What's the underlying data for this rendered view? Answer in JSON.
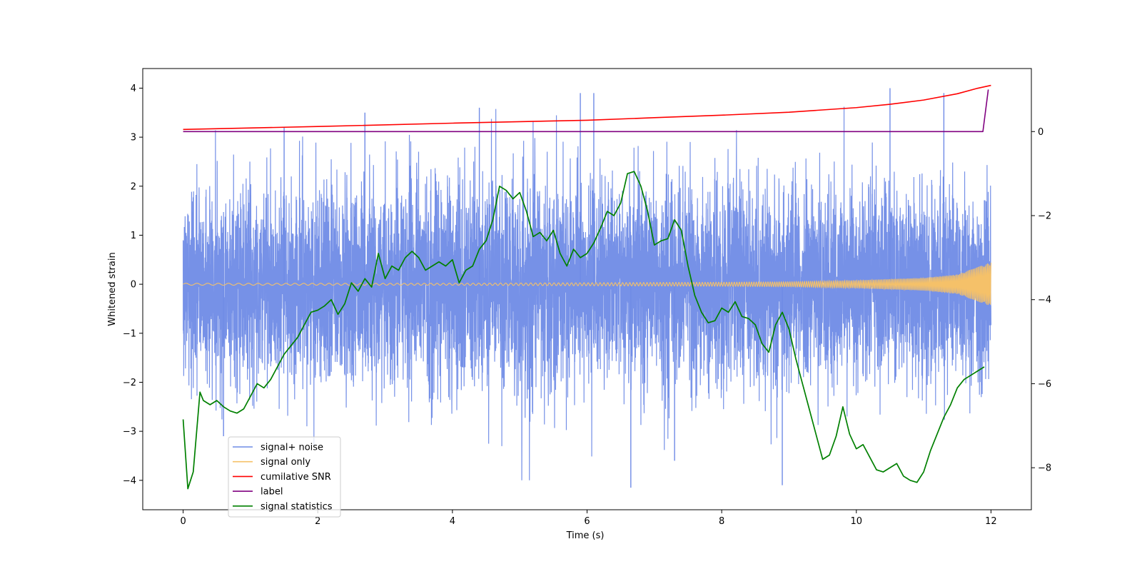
{
  "chart_data": {
    "type": "line",
    "title": "",
    "xlabel": "Time (s)",
    "ylabel": "Whitened strain",
    "xlim": [
      -0.6,
      12.6
    ],
    "ylim": [
      -4.6,
      4.4
    ],
    "y2lim": [
      -9.0,
      1.5
    ],
    "xticks": [
      "0",
      "2",
      "4",
      "6",
      "8",
      "10",
      "12"
    ],
    "yticks": [
      "−4",
      "−3",
      "−2",
      "−1",
      "0",
      "1",
      "2",
      "3",
      "4"
    ],
    "y2ticks": [
      "−8",
      "−6",
      "−4",
      "−2",
      "0"
    ],
    "legend_location": "lower-left",
    "series": [
      {
        "name": "signal+ noise",
        "axis": "left",
        "color": "#6f8be6",
        "description": "whitened noise plus signal, fluctuating approximately between -4.1 and 4.0 over 0 to 12 s",
        "amplitude_envelope": {
          "t": [
            0,
            2,
            4,
            6,
            8,
            10,
            12
          ],
          "value": [
            2.9,
            3.0,
            3.2,
            3.3,
            3.0,
            2.9,
            2.8
          ]
        },
        "peaks": {
          "t": [
            0.6,
            1.5,
            2.7,
            4.4,
            5.9,
            6.1,
            6.65,
            7.3,
            8.9,
            10.5,
            11.3
          ],
          "value": [
            -3.1,
            3.2,
            3.5,
            3.6,
            3.9,
            3.9,
            -4.15,
            -3.6,
            -4.1,
            4.0,
            3.9
          ]
        }
      },
      {
        "name": "signal only",
        "axis": "left",
        "color": "#f5c169",
        "description": "chirp whose amplitude grows toward the end",
        "amplitude_envelope": {
          "t": [
            0,
            2,
            4,
            6,
            8,
            9,
            10,
            11,
            11.5,
            12
          ],
          "value": [
            0.02,
            0.02,
            0.02,
            0.03,
            0.04,
            0.05,
            0.08,
            0.13,
            0.2,
            0.45
          ]
        }
      },
      {
        "name": "cumilative SNR",
        "axis": "right",
        "color": "#ff0000",
        "points": {
          "t": [
            0,
            2,
            4,
            6,
            7,
            8,
            9,
            10,
            10.5,
            11,
            11.5,
            11.8,
            12
          ],
          "value": [
            0.05,
            0.12,
            0.2,
            0.27,
            0.33,
            0.39,
            0.46,
            0.57,
            0.65,
            0.75,
            0.9,
            1.03,
            1.1
          ]
        }
      },
      {
        "name": "label",
        "axis": "right",
        "color": "#800080",
        "points": {
          "t": [
            0,
            11.88,
            11.96
          ],
          "value": [
            0.0,
            0.0,
            1.0
          ]
        }
      },
      {
        "name": "signal statistics",
        "axis": "right",
        "color": "#008000",
        "points": {
          "t": [
            0,
            0.07,
            0.15,
            0.25,
            0.3,
            0.4,
            0.5,
            0.6,
            0.7,
            0.8,
            0.9,
            1.0,
            1.1,
            1.2,
            1.3,
            1.4,
            1.5,
            1.6,
            1.7,
            1.8,
            1.9,
            2.0,
            2.1,
            2.2,
            2.3,
            2.4,
            2.5,
            2.6,
            2.7,
            2.8,
            2.9,
            3.0,
            3.1,
            3.2,
            3.3,
            3.4,
            3.5,
            3.6,
            3.7,
            3.8,
            3.9,
            4.0,
            4.1,
            4.2,
            4.3,
            4.4,
            4.5,
            4.6,
            4.7,
            4.8,
            4.9,
            5.0,
            5.1,
            5.2,
            5.3,
            5.4,
            5.5,
            5.6,
            5.7,
            5.8,
            5.9,
            6.0,
            6.1,
            6.2,
            6.3,
            6.4,
            6.5,
            6.6,
            6.7,
            6.8,
            6.9,
            7.0,
            7.1,
            7.2,
            7.3,
            7.4,
            7.5,
            7.6,
            7.7,
            7.8,
            7.9,
            8.0,
            8.1,
            8.2,
            8.3,
            8.4,
            8.5,
            8.6,
            8.7,
            8.8,
            8.9,
            9.0,
            9.1,
            9.2,
            9.3,
            9.4,
            9.5,
            9.6,
            9.7,
            9.8,
            9.9,
            10.0,
            10.1,
            10.2,
            10.3,
            10.4,
            10.5,
            10.6,
            10.7,
            10.8,
            10.9,
            11.0,
            11.1,
            11.2,
            11.3,
            11.4,
            11.5,
            11.6,
            11.7,
            11.8,
            11.9
          ],
          "value": [
            -6.85,
            -8.5,
            -8.1,
            -6.2,
            -6.4,
            -6.5,
            -6.4,
            -6.55,
            -6.65,
            -6.7,
            -6.6,
            -6.3,
            -6.0,
            -6.1,
            -5.9,
            -5.6,
            -5.3,
            -5.1,
            -4.9,
            -4.6,
            -4.3,
            -4.25,
            -4.15,
            -4.0,
            -4.35,
            -4.1,
            -3.6,
            -3.8,
            -3.5,
            -3.7,
            -2.9,
            -3.5,
            -3.2,
            -3.3,
            -3.0,
            -2.85,
            -3.0,
            -3.3,
            -3.2,
            -3.1,
            -3.2,
            -3.05,
            -3.6,
            -3.3,
            -3.2,
            -2.8,
            -2.6,
            -2.1,
            -1.3,
            -1.4,
            -1.6,
            -1.45,
            -1.9,
            -2.5,
            -2.4,
            -2.6,
            -2.35,
            -2.9,
            -3.2,
            -2.8,
            -3.0,
            -2.9,
            -2.65,
            -2.3,
            -1.9,
            -2.0,
            -1.7,
            -1.0,
            -0.95,
            -1.3,
            -1.9,
            -2.7,
            -2.6,
            -2.55,
            -2.1,
            -2.35,
            -3.2,
            -3.9,
            -4.3,
            -4.55,
            -4.5,
            -4.2,
            -4.3,
            -4.05,
            -4.4,
            -4.45,
            -4.6,
            -5.05,
            -5.25,
            -4.6,
            -4.3,
            -4.7,
            -5.4,
            -6.0,
            -6.6,
            -7.2,
            -7.8,
            -7.7,
            -7.25,
            -6.55,
            -7.2,
            -7.55,
            -7.45,
            -7.75,
            -8.05,
            -8.1,
            -8.0,
            -7.9,
            -8.2,
            -8.3,
            -8.35,
            -8.1,
            -7.6,
            -7.2,
            -6.8,
            -6.5,
            -6.1,
            -5.9,
            -5.8,
            -5.7,
            -5.6
          ]
        }
      }
    ]
  }
}
